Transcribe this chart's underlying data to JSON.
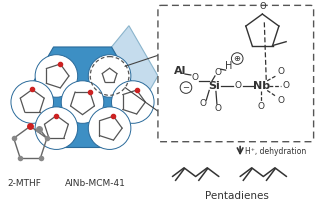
{
  "bg_color": "#ffffff",
  "hex_face_color": "#3d8fc4",
  "hex_top_color": "#b8d4e8",
  "text_color": "#333333",
  "label_2mthf": "2-MTHF",
  "label_alnb": "AlNb-MCM-41",
  "label_pentadienes": "Pentadienes",
  "label_dehydration": "H⁺, dehydration",
  "fig_width": 3.23,
  "fig_height": 2.02,
  "dpi": 100
}
